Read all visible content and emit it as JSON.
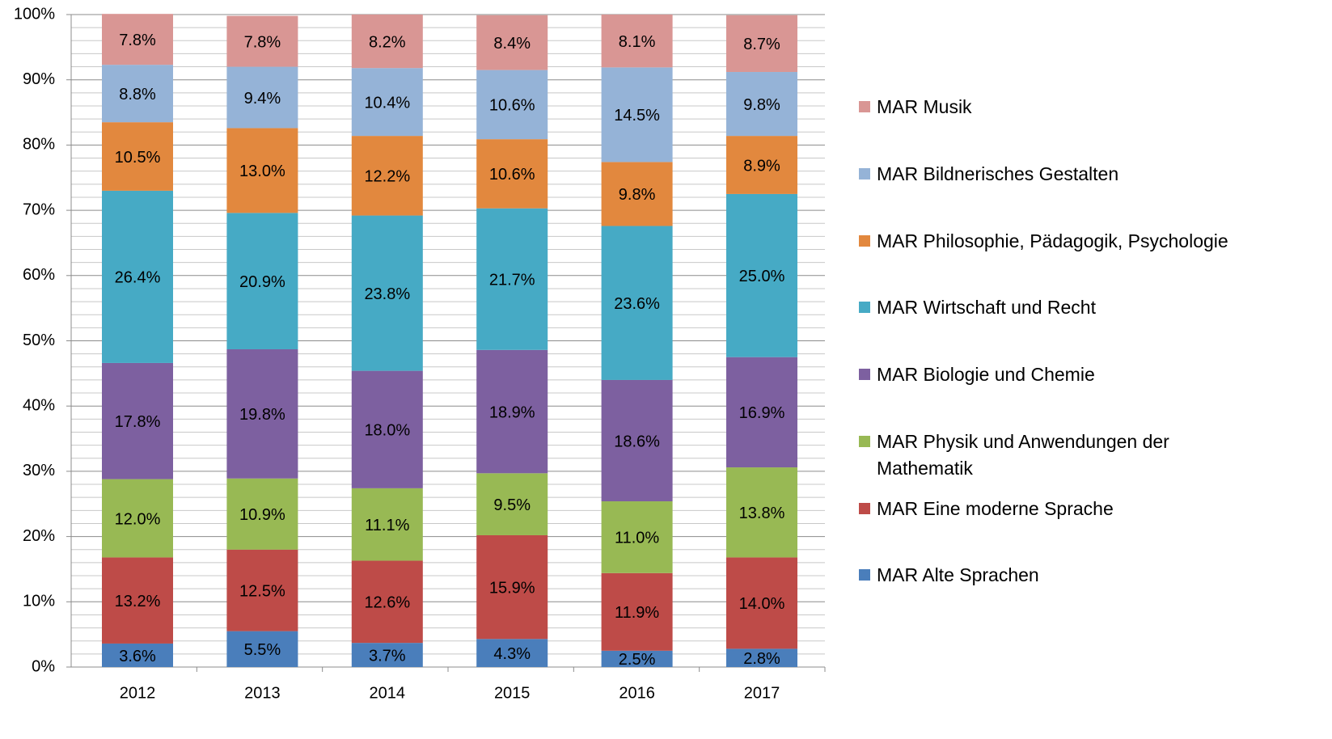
{
  "chart_data": {
    "type": "stacked_bar",
    "categories": [
      "2012",
      "2013",
      "2014",
      "2015",
      "2016",
      "2017"
    ],
    "ylim": [
      0,
      100
    ],
    "yticks": [
      {
        "value": 0,
        "label": "0%"
      },
      {
        "value": 10,
        "label": "10%"
      },
      {
        "value": 20,
        "label": "20%"
      },
      {
        "value": 30,
        "label": "30%"
      },
      {
        "value": 40,
        "label": "40%"
      },
      {
        "value": 50,
        "label": "50%"
      },
      {
        "value": 60,
        "label": "60%"
      },
      {
        "value": 70,
        "label": "70%"
      },
      {
        "value": 80,
        "label": "80%"
      },
      {
        "value": 90,
        "label": "90%"
      },
      {
        "value": 100,
        "label": "100%"
      }
    ],
    "minor_yticks": [
      2,
      4,
      6,
      8,
      12,
      14,
      16,
      18,
      22,
      24,
      26,
      28,
      32,
      34,
      36,
      38,
      42,
      44,
      46,
      48,
      52,
      54,
      56,
      58,
      62,
      64,
      66,
      68,
      72,
      74,
      76,
      78,
      82,
      84,
      86,
      88,
      92,
      94,
      96,
      98
    ],
    "grid": true,
    "legend": "right",
    "series": [
      {
        "name": "MAR Alte Sprachen",
        "color": "#4a7ebb",
        "values": [
          3.6,
          5.5,
          3.7,
          4.3,
          2.5,
          2.8
        ],
        "value_labels": [
          "3.6%",
          "5.5%",
          "3.7%",
          "4.3%",
          "2.5%",
          "2.8%"
        ]
      },
      {
        "name": "MAR Eine moderne Sprache",
        "color": "#be4b48",
        "values": [
          13.2,
          12.5,
          12.6,
          15.9,
          11.9,
          14.0
        ],
        "value_labels": [
          "13.2%",
          "12.5%",
          "12.6%",
          "15.9%",
          "11.9%",
          "14.0%"
        ]
      },
      {
        "name": "MAR Physik und Anwendungen der Mathematik",
        "color": "#98b954",
        "values": [
          12.0,
          10.9,
          11.1,
          9.5,
          11.0,
          13.8
        ],
        "value_labels": [
          "12.0%",
          "10.9%",
          "11.1%",
          "9.5%",
          "11.0%",
          "13.8%"
        ]
      },
      {
        "name": "MAR Biologie und Chemie",
        "color": "#7d60a0",
        "values": [
          17.8,
          19.8,
          18.0,
          18.9,
          18.6,
          16.9
        ],
        "value_labels": [
          "17.8%",
          "19.8%",
          "18.0%",
          "18.9%",
          "18.6%",
          "16.9%"
        ]
      },
      {
        "name": "MAR Wirtschaft und Recht",
        "color": "#46aac5",
        "values": [
          26.4,
          20.9,
          23.8,
          21.7,
          23.6,
          25.0
        ],
        "value_labels": [
          "26.4%",
          "20.9%",
          "23.8%",
          "21.7%",
          "23.6%",
          "25.0%"
        ]
      },
      {
        "name": "MAR Philosophie, Pädagogik, Psychologie",
        "color": "#e2883e",
        "values": [
          10.5,
          13.0,
          12.2,
          10.6,
          9.8,
          8.9
        ],
        "value_labels": [
          "10.5%",
          "13.0%",
          "12.2%",
          "10.6%",
          "9.8%",
          "8.9%"
        ]
      },
      {
        "name": "MAR Bildnerisches Gestalten",
        "color": "#95b3d7",
        "values": [
          8.8,
          9.4,
          10.4,
          10.6,
          14.5,
          9.8
        ],
        "value_labels": [
          "8.8%",
          "9.4%",
          "10.4%",
          "10.6%",
          "14.5%",
          "9.8%"
        ]
      },
      {
        "name": "MAR Musik",
        "color": "#d99694",
        "values": [
          7.8,
          7.8,
          8.2,
          8.4,
          8.1,
          8.7
        ],
        "value_labels": [
          "7.8%",
          "7.8%",
          "8.2%",
          "8.4%",
          "8.1%",
          "8.7%"
        ]
      }
    ]
  }
}
